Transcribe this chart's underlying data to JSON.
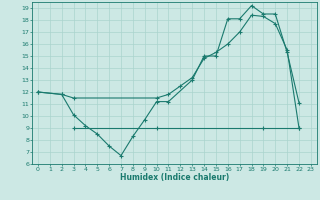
{
  "line1_x": [
    0,
    2,
    3,
    4,
    5,
    6,
    7,
    8,
    9,
    10,
    11,
    13,
    14,
    15,
    16,
    17,
    18,
    19,
    20,
    21,
    22
  ],
  "line1_y": [
    12.0,
    11.8,
    10.1,
    9.2,
    8.5,
    7.5,
    6.7,
    8.3,
    9.7,
    11.2,
    11.2,
    13.0,
    15.0,
    15.0,
    18.1,
    18.1,
    19.2,
    18.5,
    18.5,
    15.3,
    11.1
  ],
  "line2_x": [
    0,
    2,
    3,
    10,
    11,
    12,
    13,
    14,
    15,
    16,
    17,
    18,
    19,
    20,
    21,
    22
  ],
  "line2_y": [
    12.0,
    11.8,
    11.5,
    11.5,
    11.8,
    12.5,
    13.2,
    14.8,
    15.3,
    16.0,
    17.0,
    18.4,
    18.3,
    17.7,
    15.5,
    9.0
  ],
  "line3_x": [
    3,
    10,
    19,
    22
  ],
  "line3_y": [
    9.0,
    9.0,
    9.0,
    9.0
  ],
  "xlabel": "Humidex (Indice chaleur)",
  "xlim": [
    -0.5,
    23.5
  ],
  "ylim": [
    6,
    19.5
  ],
  "yticks": [
    6,
    7,
    8,
    9,
    10,
    11,
    12,
    13,
    14,
    15,
    16,
    17,
    18,
    19
  ],
  "xticks": [
    0,
    1,
    2,
    3,
    4,
    5,
    6,
    7,
    8,
    9,
    10,
    11,
    12,
    13,
    14,
    15,
    16,
    17,
    18,
    19,
    20,
    21,
    22,
    23
  ],
  "line_color": "#1a7a6e",
  "bg_color": "#cce8e4",
  "grid_color": "#aad4ce"
}
